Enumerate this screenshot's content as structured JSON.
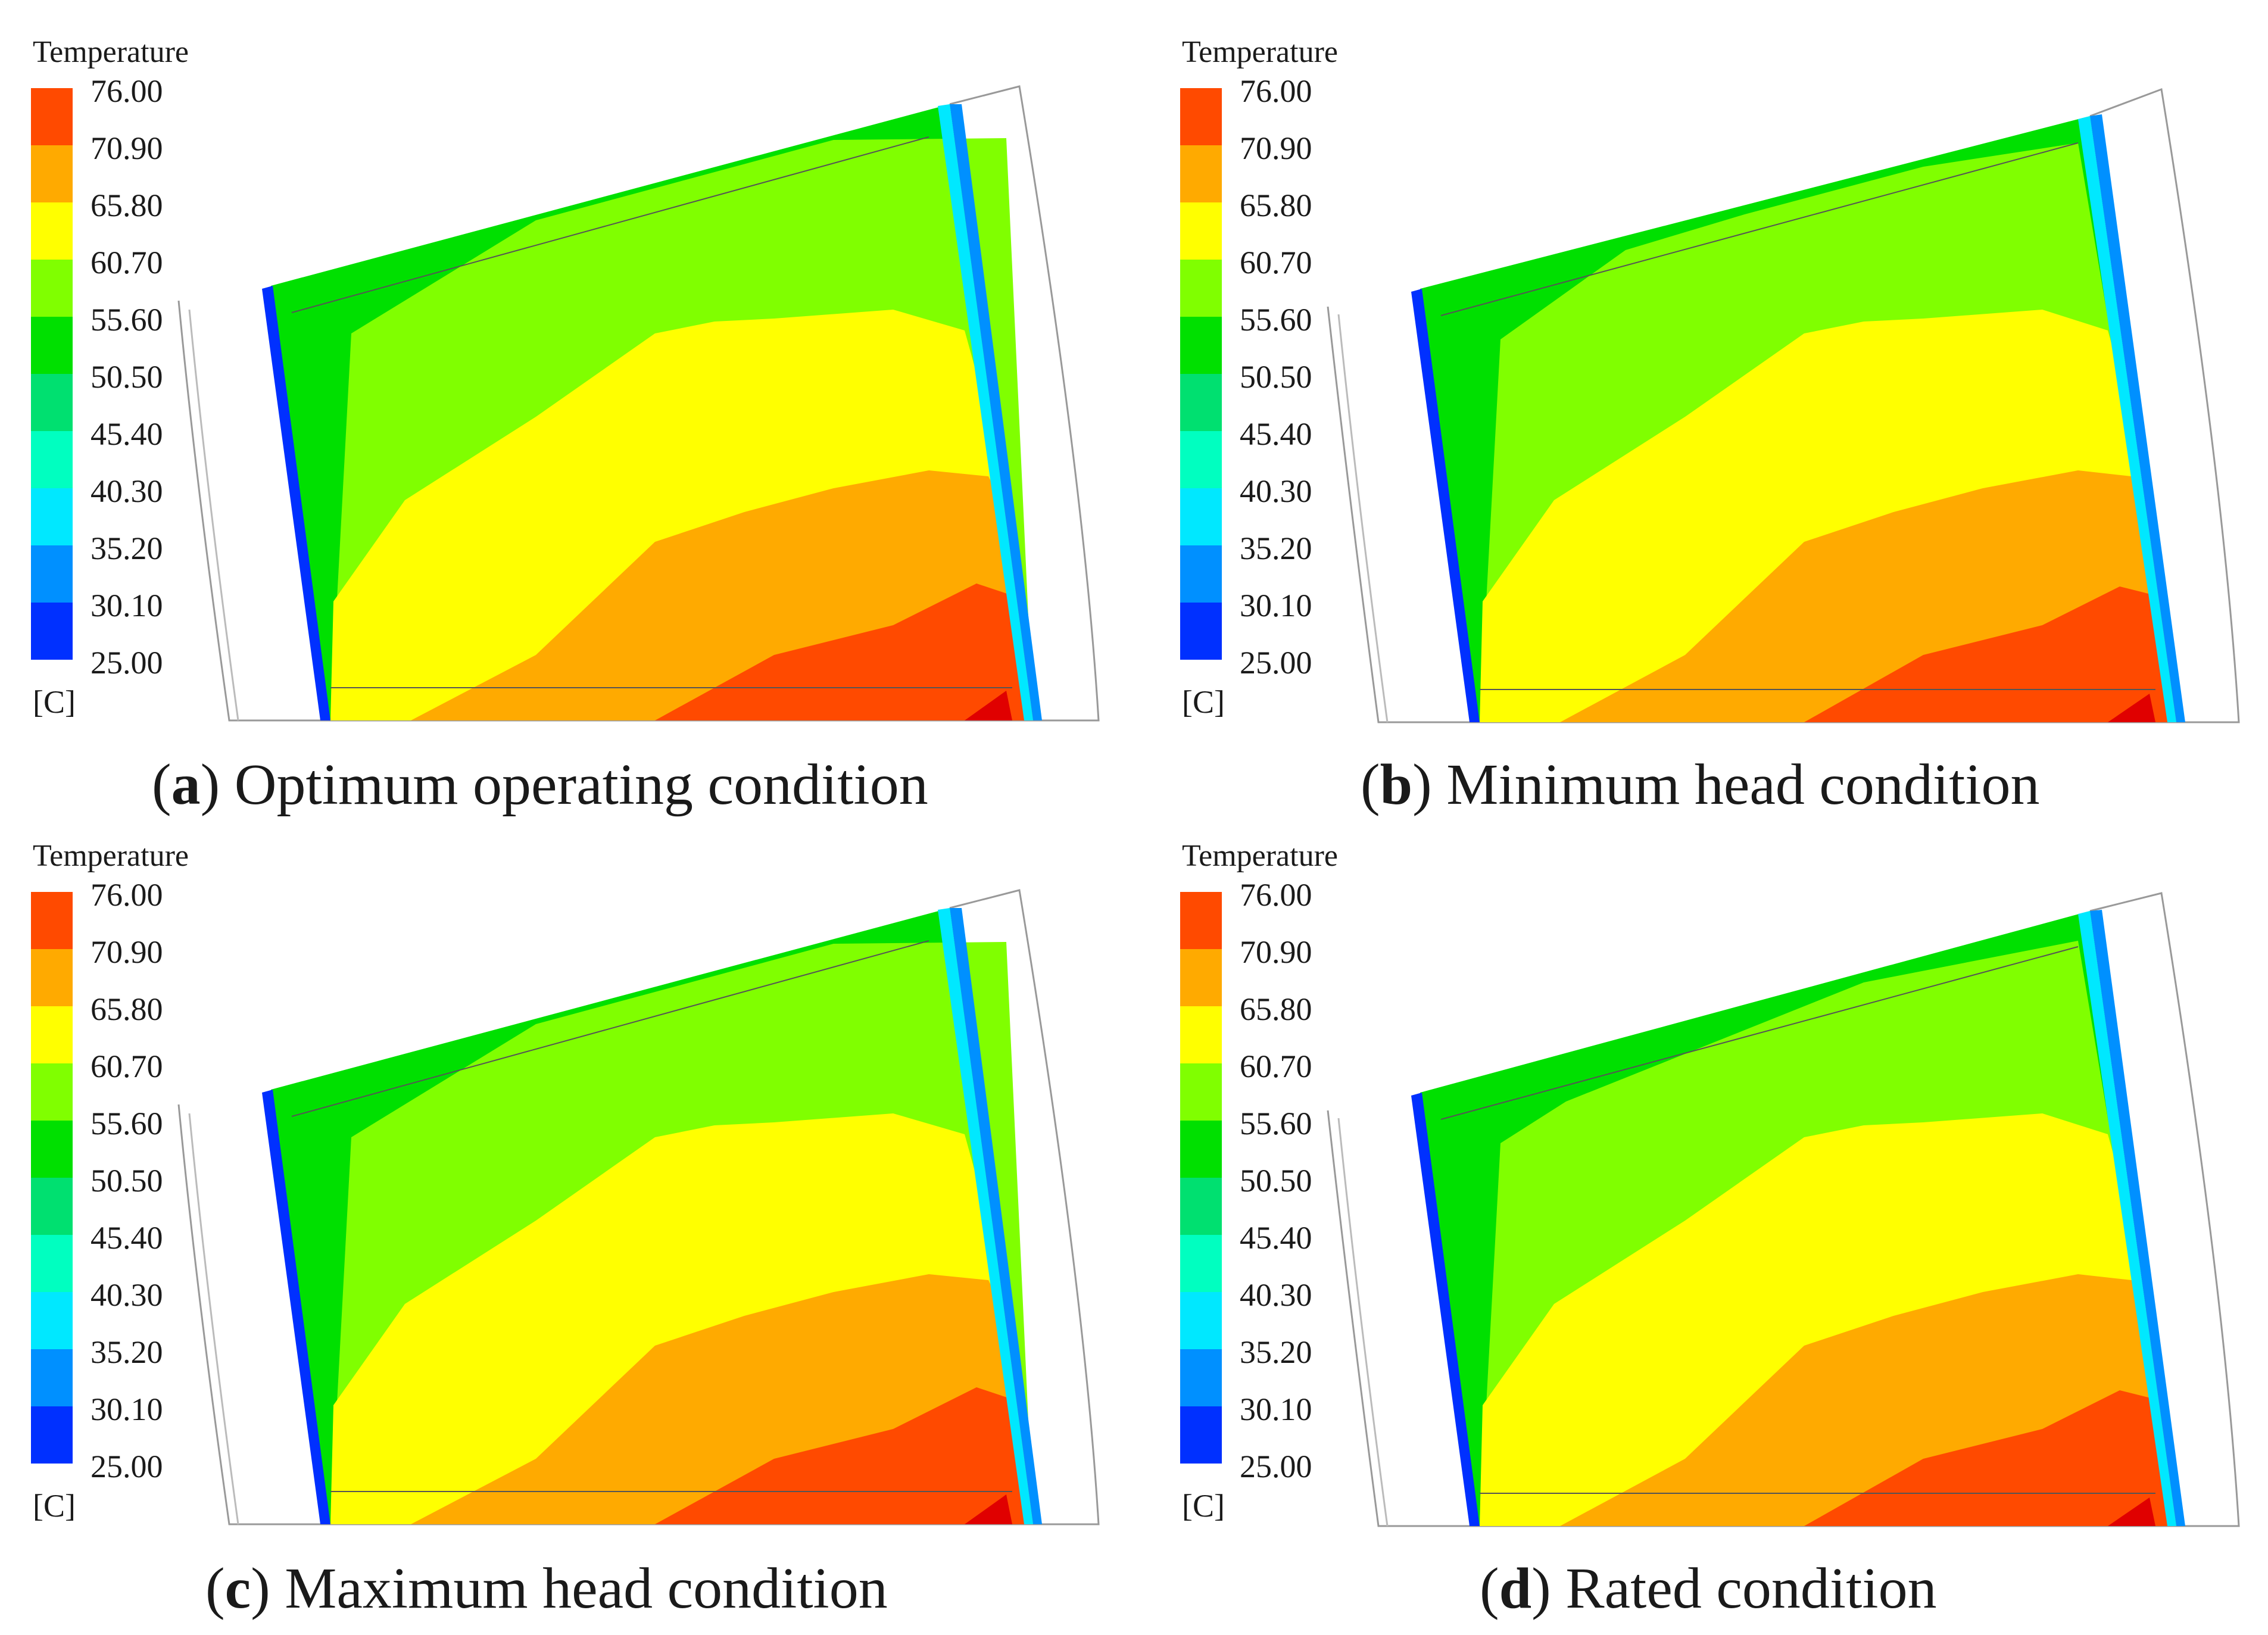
{
  "legend": {
    "title": "Temperature",
    "unit": "[C]",
    "ticks": [
      "76.00",
      "70.90",
      "65.80",
      "60.70",
      "55.60",
      "50.50",
      "45.40",
      "40.30",
      "35.20",
      "30.10",
      "25.00"
    ],
    "colors": [
      "#ff4a00",
      "#ffaa00",
      "#ffff00",
      "#80ff00",
      "#00e000",
      "#00e070",
      "#00ffc0",
      "#00e8ff",
      "#0090ff",
      "#0030ff"
    ]
  },
  "panels": [
    {
      "letter": "a",
      "caption": " Optimum operating condition"
    },
    {
      "letter": "b",
      "caption": " Minimum head condition"
    },
    {
      "letter": "c",
      "caption": " Maximum head condition"
    },
    {
      "letter": "d",
      "caption": " Rated condition"
    }
  ]
}
